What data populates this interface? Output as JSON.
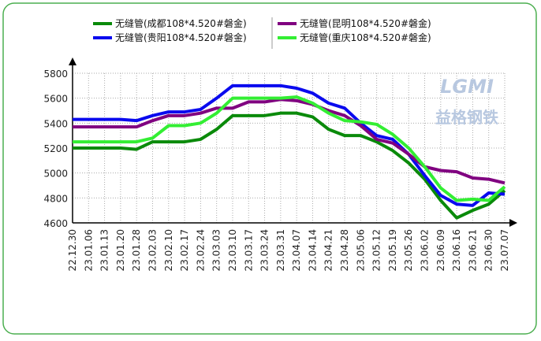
{
  "chart_data": {
    "type": "line",
    "categories": [
      "22.12.30",
      "23.01.06",
      "23.01.13",
      "23.01.20",
      "23.01.28",
      "23.02.03",
      "23.02.10",
      "23.02.17",
      "23.02.24",
      "23.03.03",
      "23.03.10",
      "23.03.17",
      "23.03.24",
      "23.03.31",
      "23.04.07",
      "23.04.14",
      "23.04.21",
      "23.04.28",
      "23.05.06",
      "23.05.12",
      "23.05.19",
      "23.05.26",
      "23.06.02",
      "23.06.09",
      "23.06.16",
      "23.06.21",
      "23.06.30",
      "23.07.07"
    ],
    "series": [
      {
        "name": "无缝管(成都108*4.520#磐金)",
        "color": "#0a8a0a",
        "values": [
          5200,
          5200,
          5200,
          5200,
          5190,
          5250,
          5250,
          5250,
          5270,
          5350,
          5460,
          5460,
          5460,
          5480,
          5480,
          5450,
          5350,
          5300,
          5300,
          5250,
          5180,
          5080,
          4950,
          4780,
          4640,
          4700,
          4750,
          4860
        ]
      },
      {
        "name": "无缝管(贵阳108*4.520#磐金)",
        "color": "#0a0aee",
        "values": [
          5430,
          5430,
          5430,
          5430,
          5420,
          5460,
          5490,
          5490,
          5510,
          5600,
          5700,
          5700,
          5700,
          5700,
          5680,
          5640,
          5560,
          5520,
          5400,
          5300,
          5270,
          5150,
          4980,
          4820,
          4750,
          4740,
          4840,
          4830
        ]
      },
      {
        "name": "无缝管(昆明108*4.520#磐金)",
        "color": "#800080",
        "values": [
          5370,
          5370,
          5370,
          5370,
          5370,
          5420,
          5460,
          5460,
          5480,
          5520,
          5520,
          5570,
          5570,
          5590,
          5580,
          5550,
          5500,
          5460,
          5380,
          5270,
          5240,
          5150,
          5050,
          5020,
          5010,
          4960,
          4950,
          4920
        ]
      },
      {
        "name": "无缝管(重庆108*4.520#磐金)",
        "color": "#33ee33",
        "values": [
          5250,
          5250,
          5250,
          5250,
          5250,
          5280,
          5380,
          5380,
          5400,
          5480,
          5600,
          5600,
          5600,
          5600,
          5610,
          5560,
          5480,
          5420,
          5410,
          5390,
          5310,
          5200,
          5050,
          4880,
          4780,
          4790,
          4780,
          4890
        ]
      }
    ],
    "ylim": [
      4600,
      5800
    ],
    "yticks": [
      4600,
      4800,
      5000,
      5200,
      5400,
      5600,
      5800
    ],
    "grid": true
  },
  "watermark": {
    "logo": "LGMI",
    "name": "益格钢铁"
  }
}
